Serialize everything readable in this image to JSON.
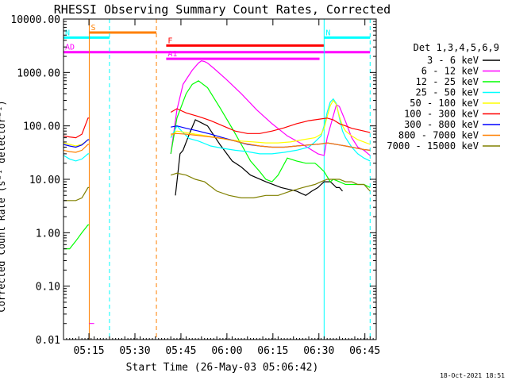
{
  "chart_data": {
    "type": "line",
    "title": "RHESSI Observing Summary Count Rates, Corrected",
    "xlabel": "Start Time (26-May-03 05:06:42)",
    "ylabel": "Corrected Count Rate (s⁻¹ detector⁻¹)",
    "footer": "18-Oct-2021 18:51",
    "x_units": "minutes after 05:06:42",
    "xlim": [
      0,
      102
    ],
    "ylim": [
      0.01,
      10000
    ],
    "y_scale": "log",
    "x_ticks": [
      {
        "label": "05:15",
        "value": 8.3
      },
      {
        "label": "05:30",
        "value": 23.3
      },
      {
        "label": "05:45",
        "value": 38.3
      },
      {
        "label": "06:00",
        "value": 53.3
      },
      {
        "label": "06:15",
        "value": 68.3
      },
      {
        "label": "06:30",
        "value": 83.3
      },
      {
        "label": "06:45",
        "value": 98.3
      }
    ],
    "y_ticks": [
      {
        "label": "0.01",
        "value": 0.01
      },
      {
        "label": "0.10",
        "value": 0.1
      },
      {
        "label": "1.00",
        "value": 1
      },
      {
        "label": "10.00",
        "value": 10
      },
      {
        "label": "100.00",
        "value": 100
      },
      {
        "label": "1000.00",
        "value": 1000
      },
      {
        "label": "10000.00",
        "value": 10000
      }
    ],
    "legend": {
      "title": "Det 1,3,4,5,6,9",
      "position": "right"
    },
    "series": [
      {
        "name": "3 - 6 keV",
        "color": "#000000",
        "x": [
          0,
          2,
          4,
          8,
          8.4,
          10,
          15,
          22,
          29,
          31,
          33,
          34,
          35,
          36.5,
          38,
          39,
          41,
          43,
          47,
          51,
          55,
          58,
          61,
          66,
          71,
          76,
          79,
          81,
          83,
          84,
          85,
          86,
          87,
          88,
          89,
          90,
          91
        ],
        "y": [
          null,
          null,
          null,
          null,
          null,
          null,
          null,
          null,
          null,
          null,
          null,
          null,
          null,
          5,
          30,
          35,
          70,
          130,
          100,
          45,
          22,
          17,
          12,
          9,
          7,
          6,
          5,
          6,
          7,
          8,
          9,
          9,
          9,
          8,
          7,
          7,
          6
        ]
      },
      {
        "name": "6 - 12 keV",
        "color": "#ff00ff",
        "x": [
          0,
          4,
          5,
          8,
          8.4,
          10,
          15,
          22,
          29,
          31,
          32,
          33,
          34,
          35,
          37,
          39,
          42,
          44,
          45,
          46,
          47,
          49,
          53,
          58,
          63,
          68,
          73,
          78,
          83,
          85,
          86,
          89,
          90,
          92,
          94,
          96,
          98,
          100
        ],
        "y": [
          null,
          null,
          null,
          null,
          0.02,
          0.02,
          null,
          null,
          null,
          null,
          null,
          null,
          null,
          30,
          200,
          600,
          1100,
          1500,
          1650,
          1600,
          1500,
          1200,
          750,
          400,
          200,
          110,
          65,
          45,
          30,
          28,
          60,
          250,
          230,
          120,
          60,
          40,
          35,
          28
        ]
      },
      {
        "name": "12 - 25 keV",
        "color": "#00ff00",
        "x": [
          0,
          2,
          4,
          6,
          8,
          8.4,
          10,
          15,
          22,
          29,
          31,
          32,
          33,
          34,
          35,
          37,
          40,
          42,
          44,
          47,
          51,
          55,
          58,
          61,
          64,
          66,
          68,
          70,
          73,
          76,
          79,
          82,
          83,
          85,
          87,
          88,
          90,
          92,
          94,
          96,
          98,
          100
        ],
        "y": [
          0.5,
          0.5,
          0.7,
          1,
          1.4,
          1.4,
          null,
          null,
          null,
          null,
          null,
          null,
          null,
          null,
          30,
          140,
          400,
          600,
          700,
          520,
          220,
          90,
          45,
          22,
          14,
          10,
          9,
          12,
          25,
          22,
          20,
          20,
          18,
          14,
          9,
          10,
          9,
          8,
          8,
          8,
          8,
          7
        ]
      },
      {
        "name": "25 - 50 keV",
        "color": "#00ffff",
        "x": [
          0,
          2,
          4,
          6,
          8,
          8.4,
          10,
          15,
          22,
          29,
          31,
          32,
          33,
          34,
          35,
          37,
          39,
          41,
          44,
          48,
          52,
          56,
          60,
          64,
          68,
          72,
          76,
          80,
          82,
          84,
          85,
          86,
          87,
          88,
          89,
          90,
          91,
          92,
          94,
          96,
          98,
          100
        ],
        "y": [
          28,
          24,
          22,
          24,
          30,
          30,
          null,
          null,
          null,
          null,
          null,
          null,
          null,
          null,
          60,
          100,
          75,
          58,
          52,
          42,
          38,
          35,
          33,
          30,
          30,
          32,
          35,
          40,
          50,
          65,
          100,
          180,
          280,
          320,
          260,
          140,
          80,
          60,
          40,
          30,
          25,
          22
        ]
      },
      {
        "name": "50 - 100 keV",
        "color": "#ffff00",
        "x": [
          0,
          2,
          4,
          6,
          8,
          8.4,
          10,
          15,
          22,
          29,
          31,
          32,
          33,
          34,
          35,
          37,
          40,
          43,
          46,
          50,
          54,
          58,
          62,
          66,
          70,
          74,
          78,
          82,
          84,
          85,
          86,
          87,
          88,
          89,
          90,
          91,
          92,
          94,
          96,
          98,
          100
        ],
        "y": [
          48,
          45,
          42,
          45,
          55,
          55,
          null,
          null,
          null,
          null,
          null,
          null,
          null,
          null,
          65,
          80,
          75,
          70,
          66,
          60,
          55,
          52,
          50,
          48,
          48,
          50,
          55,
          60,
          70,
          90,
          150,
          240,
          300,
          250,
          150,
          100,
          80,
          65,
          55,
          50,
          45
        ]
      },
      {
        "name": "100 - 300 keV",
        "color": "#ff0000",
        "x": [
          0,
          2,
          4,
          6,
          8,
          8.4,
          10,
          15,
          22,
          29,
          31,
          32,
          33,
          34,
          35,
          37,
          40,
          44,
          48,
          52,
          56,
          60,
          64,
          68,
          72,
          76,
          80,
          84,
          86,
          88,
          90,
          92,
          94,
          96,
          98,
          100
        ],
        "y": [
          65,
          62,
          60,
          70,
          140,
          140,
          null,
          null,
          null,
          null,
          null,
          null,
          null,
          null,
          180,
          210,
          175,
          150,
          125,
          100,
          80,
          72,
          72,
          80,
          92,
          110,
          125,
          135,
          140,
          130,
          110,
          100,
          90,
          85,
          80,
          75
        ]
      },
      {
        "name": "300 - 800 keV",
        "color": "#0000ff",
        "x": [
          0,
          2,
          4,
          6,
          8,
          8.4,
          10,
          15,
          22,
          29,
          31,
          32,
          33,
          34,
          35,
          37,
          40,
          44,
          48,
          52,
          56,
          60,
          64,
          68,
          72,
          76,
          80,
          84,
          86,
          88,
          90,
          92,
          94,
          96,
          98,
          100
        ],
        "y": [
          45,
          42,
          40,
          44,
          55,
          55,
          null,
          null,
          null,
          null,
          null,
          null,
          null,
          null,
          95,
          100,
          90,
          80,
          70,
          60,
          52,
          45,
          42,
          40,
          40,
          42,
          44,
          46,
          48,
          46,
          44,
          42,
          40,
          38,
          36,
          35
        ]
      },
      {
        "name": "800 - 7000 keV",
        "color": "#ff8000",
        "x": [
          0,
          2,
          4,
          6,
          8,
          8.4,
          10,
          15,
          22,
          29,
          31,
          32,
          33,
          34,
          35,
          37,
          40,
          44,
          48,
          52,
          56,
          60,
          64,
          68,
          72,
          76,
          80,
          84,
          86,
          88,
          90,
          92,
          94,
          96,
          98,
          100
        ],
        "y": [
          35,
          33,
          32,
          35,
          45,
          45,
          null,
          null,
          null,
          null,
          null,
          null,
          null,
          null,
          70,
          72,
          70,
          66,
          62,
          58,
          52,
          46,
          42,
          40,
          40,
          42,
          44,
          46,
          48,
          46,
          44,
          42,
          40,
          38,
          36,
          35
        ]
      },
      {
        "name": "7000 - 15000 keV",
        "color": "#808000",
        "x": [
          0,
          2,
          4,
          6,
          8,
          8.4,
          10,
          15,
          22,
          29,
          31,
          32,
          33,
          34,
          35,
          37,
          40,
          43,
          46,
          50,
          54,
          58,
          62,
          66,
          70,
          74,
          78,
          82,
          84,
          86,
          88,
          90,
          92,
          94,
          96,
          98,
          100
        ],
        "y": [
          4,
          4,
          4,
          4.5,
          7,
          7,
          null,
          null,
          null,
          null,
          null,
          null,
          null,
          null,
          12,
          13,
          12,
          10,
          9,
          6,
          5,
          4.5,
          4.5,
          5,
          5,
          6,
          7,
          8,
          9,
          10,
          10,
          10,
          9,
          9,
          8,
          8,
          6
        ]
      }
    ],
    "state_bars": [
      {
        "label": "S",
        "color": "#ff8000",
        "x_start": 8.4,
        "x_end": 30.3,
        "y_value": 5600
      },
      {
        "label": "N",
        "color": "#00ffff",
        "x_start": 0,
        "x_end": 15,
        "y_value": 4500
      },
      {
        "label": "N",
        "color": "#00ffff",
        "x_start": 85,
        "x_end": 100,
        "y_value": 4500
      },
      {
        "label": "F",
        "color": "#ff0000",
        "x_start": 33.5,
        "x_end": 85,
        "y_value": 3200
      },
      {
        "label": "AD",
        "color": "#ff00ff",
        "x_start": 0,
        "x_end": 100,
        "y_value": 2400
      },
      {
        "label": "A1",
        "color": "#ff00ff",
        "x_start": 33.5,
        "x_end": 83.5,
        "y_value": 1800
      }
    ],
    "markers": [
      {
        "color": "#ff8000",
        "x": 8.4,
        "style": "solid"
      },
      {
        "color": "#00ffff",
        "x": 15,
        "style": "dashed"
      },
      {
        "color": "#ff8000",
        "x": 30.3,
        "style": "dashed"
      },
      {
        "color": "#00ffff",
        "x": 85,
        "style": "solid"
      },
      {
        "color": "#00ffff",
        "x": 100,
        "style": "dashed"
      }
    ]
  }
}
